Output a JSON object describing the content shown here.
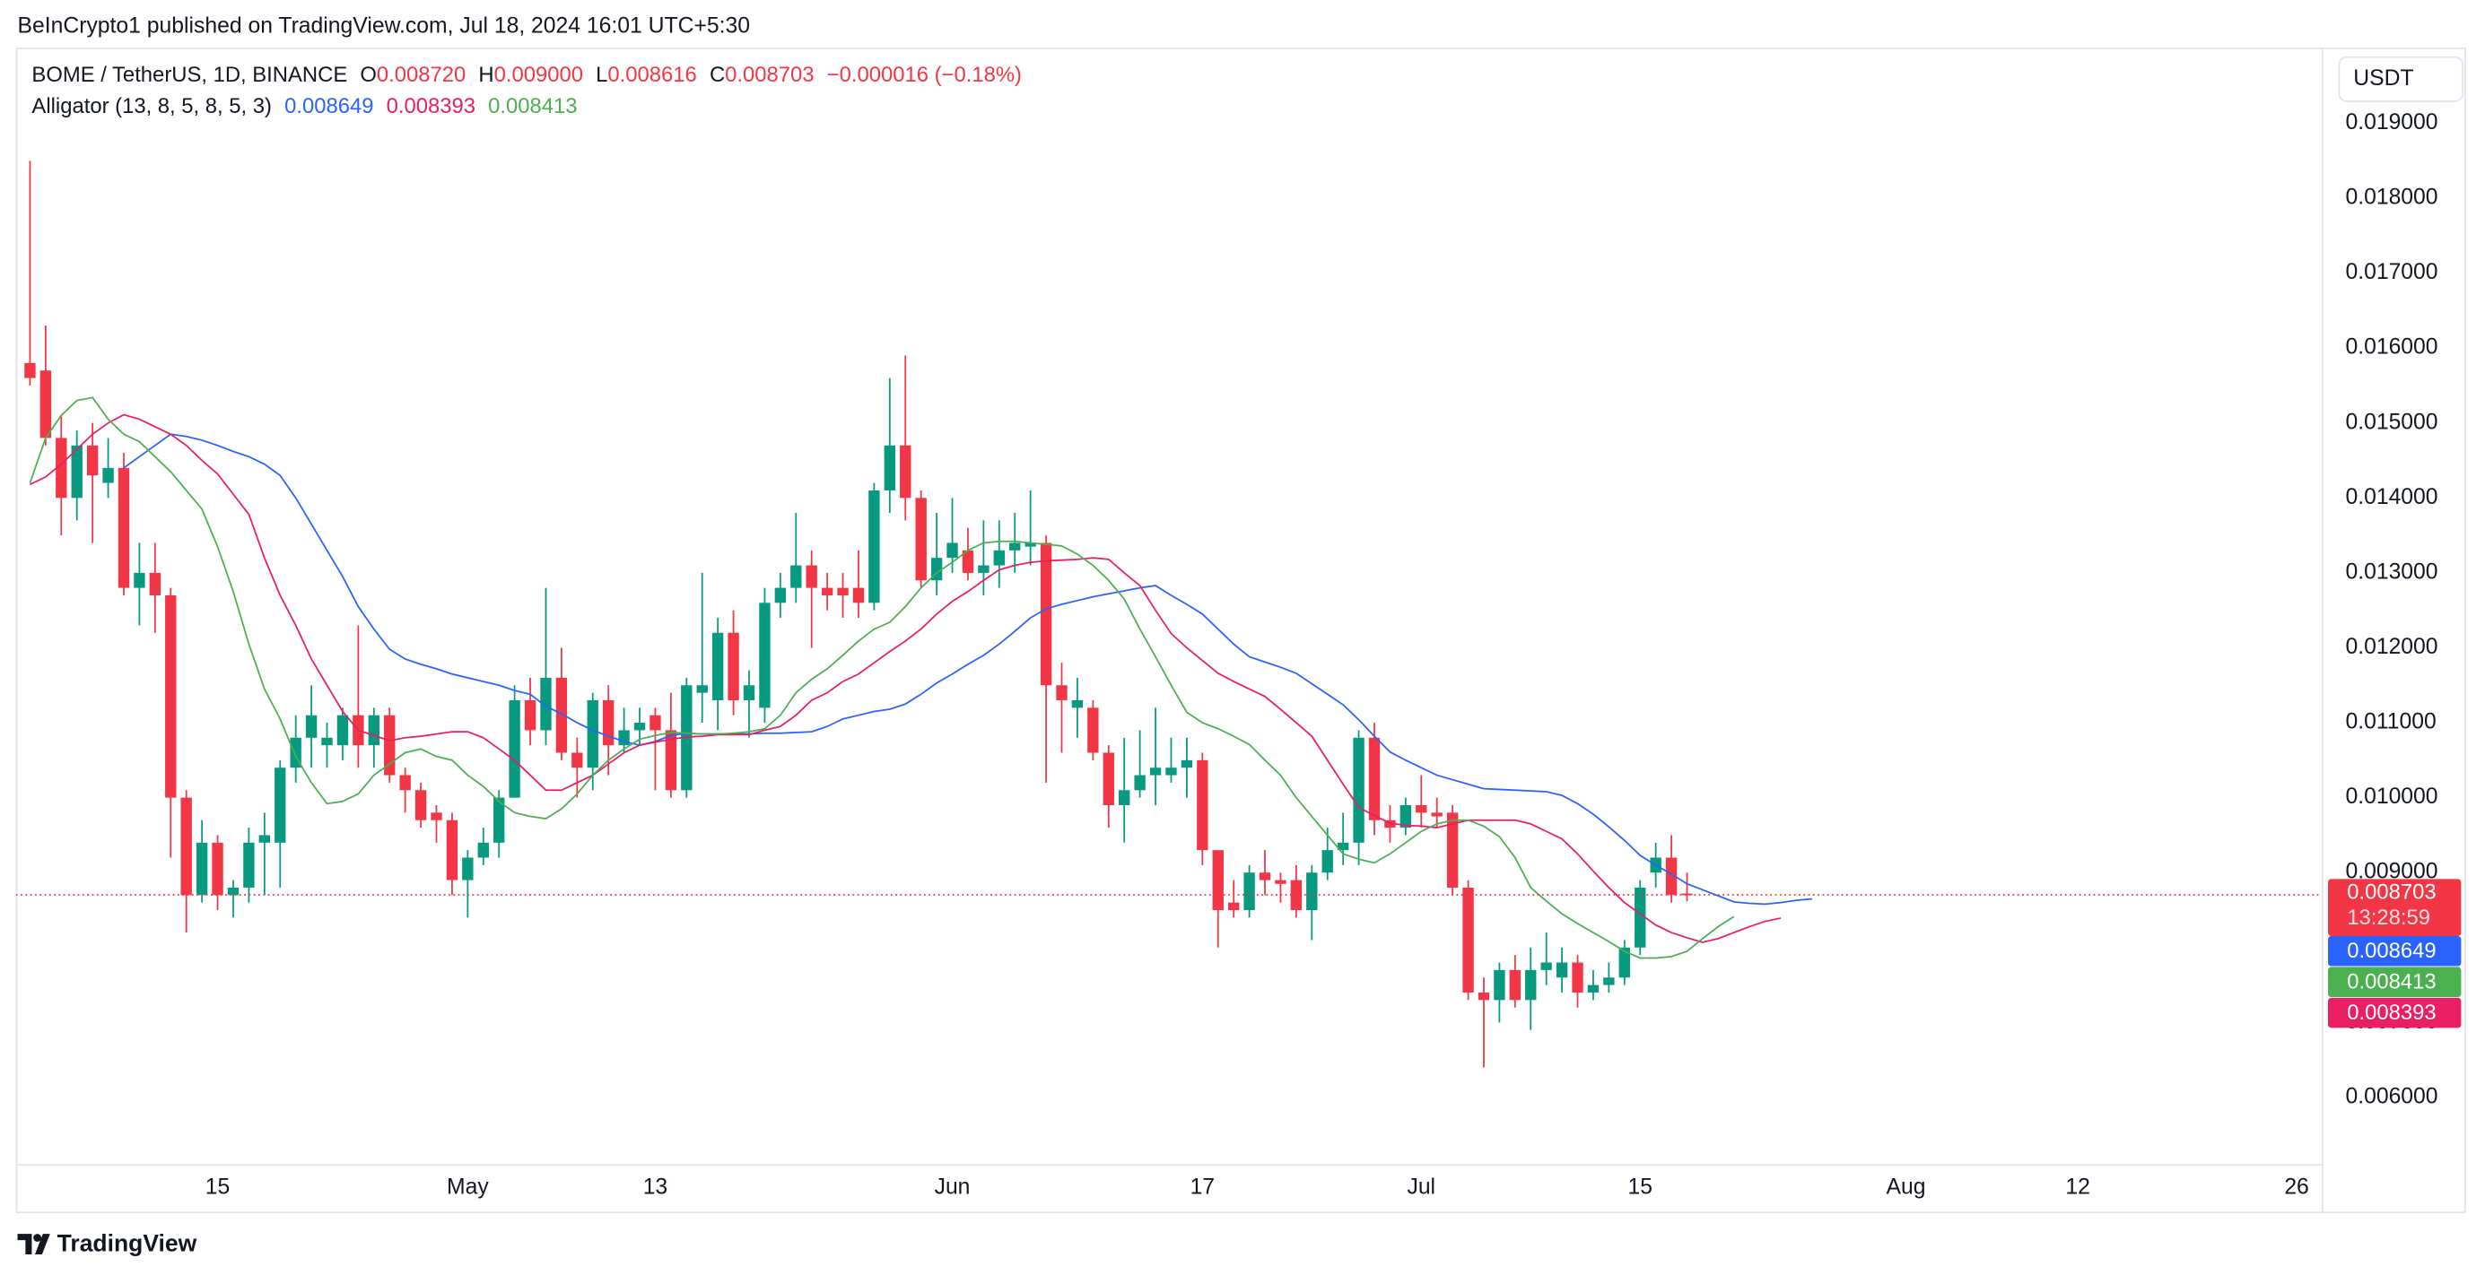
{
  "header": {
    "published": "BeInCrypto1 published on TradingView.com, Jul 18, 2024 16:01 UTC+5:30",
    "symbol": "BOME / TetherUS, 1D, BINANCE",
    "ohlc": [
      {
        "label": "O",
        "value": "0.008720"
      },
      {
        "label": "H",
        "value": "0.009000"
      },
      {
        "label": "L",
        "value": "0.008616"
      },
      {
        "label": "C",
        "value": "0.008703"
      }
    ],
    "change": "−0.000016 (−0.18%)",
    "indicator": "Alligator (13, 8, 5, 8, 5, 3)",
    "currency": "USDT",
    "countdown": "13:28:59",
    "brand": "TradingView"
  },
  "chart_data": {
    "type": "candlestick",
    "up_color": "#089981",
    "down_color": "#f23645",
    "open": [
      0.0158,
      0.0157,
      0.0148,
      0.014,
      0.0147,
      0.0142,
      0.0144,
      0.0128,
      0.013,
      0.0127,
      0.01,
      0.0087,
      0.0094,
      0.0087,
      0.0088,
      0.0094,
      0.0094,
      0.0104,
      0.0108,
      0.0107,
      0.0107,
      0.0111,
      0.0107,
      0.0111,
      0.0103,
      0.0101,
      0.0098,
      0.0097,
      0.0089,
      0.0092,
      0.0094,
      0.01,
      0.0113,
      0.0109,
      0.0116,
      0.0106,
      0.0104,
      0.0113,
      0.0107,
      0.0109,
      0.0111,
      0.0109,
      0.0101,
      0.0114,
      0.0113,
      0.0122,
      0.0113,
      0.0112,
      0.0126,
      0.0128,
      0.0131,
      0.0128,
      0.0128,
      0.0128,
      0.0126,
      0.0141,
      0.0147,
      0.014,
      0.0129,
      0.0132,
      0.0133,
      0.013,
      0.0131,
      0.0133,
      0.01335,
      0.0134,
      0.0115,
      0.0112,
      0.0112,
      0.0106,
      0.0099,
      0.0101,
      0.0103,
      0.0103,
      0.0104,
      0.0105,
      0.0093,
      0.0086,
      0.0085,
      0.009,
      0.0089,
      0.0089,
      0.0085,
      0.009,
      0.0093,
      0.0094,
      0.0108,
      0.0097,
      0.0096,
      0.0099,
      0.0098,
      0.0098,
      0.0088,
      0.0074,
      0.0073,
      0.0077,
      0.0073,
      0.0077,
      0.0076,
      0.0078,
      0.0074,
      0.0075,
      0.0076,
      0.008,
      0.009,
      0.0092,
      0.00872,
      null,
      null,
      null,
      null,
      null,
      null,
      null,
      null
    ],
    "high": [
      0.0185,
      0.0163,
      0.0151,
      0.0149,
      0.015,
      0.0148,
      0.0146,
      0.0134,
      0.0134,
      0.0128,
      0.0101,
      0.0097,
      0.0095,
      0.0089,
      0.0096,
      0.0098,
      0.0105,
      0.0111,
      0.0115,
      0.011,
      0.0112,
      0.0123,
      0.0112,
      0.0112,
      0.0104,
      0.0102,
      0.0099,
      0.0098,
      0.0093,
      0.0096,
      0.0101,
      0.0115,
      0.0116,
      0.0128,
      0.012,
      0.0108,
      0.0114,
      0.0115,
      0.0112,
      0.0112,
      0.0112,
      0.0114,
      0.0116,
      0.013,
      0.0124,
      0.0125,
      0.0117,
      0.0128,
      0.013,
      0.0138,
      0.0133,
      0.013,
      0.013,
      0.0133,
      0.0142,
      0.0156,
      0.0159,
      0.0141,
      0.0138,
      0.014,
      0.0136,
      0.0137,
      0.0137,
      0.0138,
      0.0141,
      0.0135,
      0.0118,
      0.0116,
      0.0113,
      0.0107,
      0.0108,
      0.0109,
      0.0112,
      0.0108,
      0.0108,
      0.0106,
      0.0093,
      0.0089,
      0.0091,
      0.0093,
      0.009,
      0.0091,
      0.0091,
      0.0096,
      0.0098,
      0.0109,
      0.011,
      0.0099,
      0.01,
      0.0103,
      0.01,
      0.0099,
      0.0089,
      0.0076,
      0.0078,
      0.0079,
      0.008,
      0.0082,
      0.008,
      0.0079,
      0.0077,
      0.0078,
      0.0081,
      0.0089,
      0.0094,
      0.0095,
      0.009,
      null,
      null,
      null,
      null,
      null,
      null,
      null,
      null
    ],
    "low": [
      0.0155,
      0.0147,
      0.0135,
      0.0137,
      0.0134,
      0.014,
      0.0127,
      0.0123,
      0.0122,
      0.0092,
      0.0082,
      0.0086,
      0.0085,
      0.0084,
      0.0086,
      0.0087,
      0.0088,
      0.0102,
      0.0104,
      0.0104,
      0.0105,
      0.0104,
      0.0104,
      0.0102,
      0.0098,
      0.0096,
      0.0094,
      0.0087,
      0.0084,
      0.0091,
      0.0092,
      0.01,
      0.0107,
      0.0107,
      0.0105,
      0.01,
      0.0101,
      0.0103,
      0.0106,
      0.0107,
      0.0101,
      0.01,
      0.01,
      0.011,
      0.0109,
      0.0111,
      0.0108,
      0.011,
      0.0124,
      0.0126,
      0.012,
      0.0125,
      0.0124,
      0.0124,
      0.0125,
      0.0138,
      0.0137,
      0.0128,
      0.0127,
      0.013,
      0.0129,
      0.0127,
      0.0128,
      0.013,
      0.0131,
      0.0102,
      0.0106,
      0.0108,
      0.0105,
      0.0096,
      0.0094,
      0.01,
      0.0099,
      0.0102,
      0.01,
      0.0091,
      0.008,
      0.0084,
      0.0084,
      0.0087,
      0.0086,
      0.0084,
      0.0081,
      0.0089,
      0.0091,
      0.0091,
      0.0095,
      0.0094,
      0.0095,
      0.0096,
      0.0096,
      0.0087,
      0.0073,
      0.0064,
      0.007,
      0.0072,
      0.0069,
      0.0075,
      0.0074,
      0.0072,
      0.0073,
      0.0074,
      0.0075,
      0.0079,
      0.0088,
      0.0086,
      0.008616,
      null,
      null,
      null,
      null,
      null,
      null,
      null,
      null
    ],
    "close": [
      0.0156,
      0.0148,
      0.014,
      0.0147,
      0.0143,
      0.0144,
      0.0128,
      0.013,
      0.0127,
      0.01,
      0.0087,
      0.0094,
      0.0087,
      0.0088,
      0.0094,
      0.0095,
      0.0104,
      0.0108,
      0.0111,
      0.0108,
      0.0111,
      0.0107,
      0.0111,
      0.0103,
      0.0101,
      0.0097,
      0.0097,
      0.0089,
      0.0092,
      0.0094,
      0.01,
      0.0113,
      0.0109,
      0.0116,
      0.0106,
      0.0104,
      0.0113,
      0.0107,
      0.0109,
      0.011,
      0.0109,
      0.0101,
      0.0115,
      0.0115,
      0.0122,
      0.0113,
      0.0115,
      0.0126,
      0.0128,
      0.0131,
      0.0128,
      0.0127,
      0.0127,
      0.0126,
      0.0141,
      0.0147,
      0.014,
      0.0129,
      0.0132,
      0.0134,
      0.013,
      0.0131,
      0.0133,
      0.0134,
      0.0134,
      0.0115,
      0.0113,
      0.0113,
      0.0106,
      0.0099,
      0.0101,
      0.0103,
      0.0104,
      0.0104,
      0.0105,
      0.0093,
      0.0085,
      0.0085,
      0.009,
      0.0089,
      0.00885,
      0.0085,
      0.009,
      0.0093,
      0.0094,
      0.0108,
      0.0097,
      0.0096,
      0.0099,
      0.0098,
      0.00975,
      0.0088,
      0.0074,
      0.0073,
      0.0077,
      0.0073,
      0.0077,
      0.0078,
      0.0078,
      0.0074,
      0.0075,
      0.0076,
      0.008,
      0.0088,
      0.0092,
      0.0087,
      0.008703,
      null,
      null,
      null,
      null,
      null,
      null,
      null,
      null
    ],
    "series": [
      {
        "color": "#2962ff",
        "values": [
          null,
          null,
          null,
          null,
          null,
          null,
          0.0144,
          0.01455,
          0.0147,
          0.01485,
          0.01482,
          0.01477,
          0.0147,
          0.01462,
          0.01455,
          0.01445,
          0.0143,
          0.014,
          0.01365,
          0.0133,
          0.01295,
          0.01255,
          0.01225,
          0.01198,
          0.01185,
          0.01178,
          0.01172,
          0.01165,
          0.0116,
          0.01155,
          0.0115,
          0.01143,
          0.01138,
          0.01122,
          0.01112,
          0.011,
          0.0109,
          0.01082,
          0.01075,
          0.0107,
          0.01075,
          0.01083,
          0.01086,
          0.01085,
          0.01085,
          0.01085,
          0.01085,
          0.01086,
          0.01086,
          0.01087,
          0.01088,
          0.01095,
          0.01105,
          0.0111,
          0.01115,
          0.01118,
          0.01125,
          0.01138,
          0.01153,
          0.01165,
          0.01178,
          0.0119,
          0.01205,
          0.01222,
          0.0124,
          0.01252,
          0.01258,
          0.01263,
          0.01268,
          0.01272,
          0.01276,
          0.0128,
          0.01283,
          0.0127,
          0.01258,
          0.01245,
          0.01225,
          0.01205,
          0.01188,
          0.01181,
          0.01174,
          0.01166,
          0.01152,
          0.01138,
          0.01124,
          0.01104,
          0.01082,
          0.01061,
          0.0105,
          0.0104,
          0.0103,
          0.01024,
          0.01018,
          0.01012,
          0.01011,
          0.0101,
          0.01009,
          0.01008,
          0.01003,
          0.00992,
          0.00978,
          0.00961,
          0.00943,
          0.00923,
          0.0091,
          0.00898,
          0.00885,
          0.00877,
          0.00869,
          0.00861,
          0.00859,
          0.00858,
          0.0086,
          0.00863,
          0.008649
        ]
      },
      {
        "color": "#e91e63",
        "values": [
          0.01418,
          0.01428,
          0.01445,
          0.01465,
          0.01485,
          0.015,
          0.01511,
          0.01505,
          0.01495,
          0.01485,
          0.0147,
          0.0145,
          0.01432,
          0.01405,
          0.01378,
          0.0132,
          0.0127,
          0.0123,
          0.01185,
          0.0115,
          0.01115,
          0.0109,
          0.01083,
          0.01076,
          0.0108,
          0.01082,
          0.01085,
          0.01088,
          0.01088,
          0.0108,
          0.01065,
          0.0105,
          0.0103,
          0.0101,
          0.0101,
          0.0102,
          0.0103,
          0.01045,
          0.0106,
          0.0107,
          0.01074,
          0.01078,
          0.01081,
          0.01082,
          0.01084,
          0.01084,
          0.01084,
          0.0109,
          0.01095,
          0.0111,
          0.0113,
          0.0114,
          0.01155,
          0.01165,
          0.0118,
          0.01195,
          0.01209,
          0.01225,
          0.01245,
          0.01262,
          0.01275,
          0.0129,
          0.01304,
          0.0131,
          0.01314,
          0.01316,
          0.01317,
          0.01318,
          0.0132,
          0.01318,
          0.013,
          0.01283,
          0.0125,
          0.01219,
          0.012,
          0.01183,
          0.01166,
          0.01155,
          0.01145,
          0.01135,
          0.01118,
          0.011,
          0.01082,
          0.0105,
          0.01018,
          0.00987,
          0.00976,
          0.00966,
          0.00963,
          0.00962,
          0.0096,
          0.00965,
          0.0097,
          0.0097,
          0.0097,
          0.0097,
          0.00965,
          0.00955,
          0.00945,
          0.00925,
          0.00902,
          0.0088,
          0.0086,
          0.00845,
          0.0083,
          0.0082,
          0.00813,
          0.00807,
          0.00812,
          0.0082,
          0.00828,
          0.00835,
          0.008393,
          null,
          null
        ]
      },
      {
        "color": "#4caf50",
        "values": [
          0.0142,
          0.0148,
          0.0151,
          0.0153,
          0.01534,
          0.01505,
          0.01485,
          0.01475,
          0.01455,
          0.01435,
          0.0141,
          0.01385,
          0.01335,
          0.01275,
          0.01205,
          0.01145,
          0.01105,
          0.01055,
          0.0102,
          0.00992,
          0.00995,
          0.01005,
          0.0103,
          0.01045,
          0.0106,
          0.01065,
          0.01055,
          0.0105,
          0.0103,
          0.01015,
          0.00995,
          0.0098,
          0.00975,
          0.00972,
          0.00985,
          0.01005,
          0.0103,
          0.0105,
          0.01065,
          0.01078,
          0.01083,
          0.01087,
          0.01086,
          0.01085,
          0.01085,
          0.01086,
          0.01088,
          0.01092,
          0.0111,
          0.0114,
          0.01158,
          0.01172,
          0.0119,
          0.01209,
          0.01225,
          0.01234,
          0.01255,
          0.0128,
          0.013,
          0.01314,
          0.0133,
          0.0134,
          0.01342,
          0.01342,
          0.0134,
          0.01338,
          0.01336,
          0.01325,
          0.0131,
          0.0129,
          0.01265,
          0.01225,
          0.01188,
          0.0115,
          0.01114,
          0.011,
          0.01092,
          0.01082,
          0.01071,
          0.0105,
          0.0103,
          0.01,
          0.00975,
          0.0095,
          0.00925,
          0.00918,
          0.00913,
          0.00925,
          0.0094,
          0.00955,
          0.00965,
          0.0097,
          0.0097,
          0.00962,
          0.00948,
          0.0092,
          0.0088,
          0.00862,
          0.00845,
          0.00832,
          0.0082,
          0.00808,
          0.00795,
          0.00786,
          0.00786,
          0.00788,
          0.00795,
          0.00812,
          0.00828,
          0.008413,
          null,
          null,
          null,
          null,
          null
        ]
      }
    ],
    "ylim": [
      0.00511,
      0.02001
    ],
    "yticks": [
      {
        "value": 0.019,
        "label": "0.019000"
      },
      {
        "value": 0.018,
        "label": "0.018000"
      },
      {
        "value": 0.017,
        "label": "0.017000"
      },
      {
        "value": 0.016,
        "label": "0.016000"
      },
      {
        "value": 0.015,
        "label": "0.015000"
      },
      {
        "value": 0.014,
        "label": "0.014000"
      },
      {
        "value": 0.013,
        "label": "0.013000"
      },
      {
        "value": 0.012,
        "label": "0.012000"
      },
      {
        "value": 0.011,
        "label": "0.011000"
      },
      {
        "value": 0.01,
        "label": "0.010000"
      },
      {
        "value": 0.009,
        "label": "0.009000"
      },
      {
        "value": 0.008,
        "label": "0.008000"
      },
      {
        "value": 0.007,
        "label": "0.007000"
      },
      {
        "value": 0.006,
        "label": "0.006000"
      }
    ],
    "xlim": [
      -0.9,
      146.6
    ],
    "xticks": [
      {
        "value": 12,
        "label": "15"
      },
      {
        "value": 28,
        "label": "May"
      },
      {
        "value": 40,
        "label": "13"
      },
      {
        "value": 59,
        "label": "Jun"
      },
      {
        "value": 75,
        "label": "17"
      },
      {
        "value": 89,
        "label": "Jul"
      },
      {
        "value": 103,
        "label": "15"
      },
      {
        "value": 120,
        "label": "Aug"
      },
      {
        "value": 131,
        "label": "12"
      },
      {
        "value": 145,
        "label": "26"
      }
    ],
    "grid": false
  }
}
